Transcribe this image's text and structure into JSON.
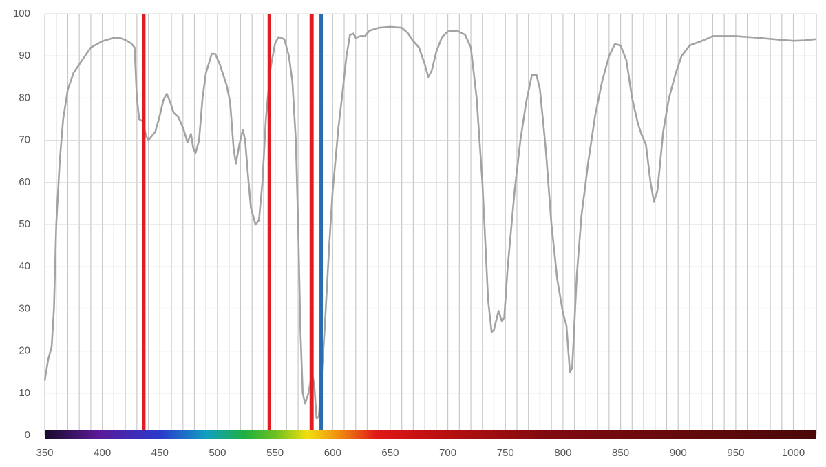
{
  "chart_data": {
    "type": "line",
    "x": [
      350,
      353,
      356,
      358,
      360,
      363,
      366,
      370,
      375,
      380,
      385,
      390,
      400,
      410,
      415,
      420,
      425,
      428,
      430,
      432,
      435,
      438,
      440,
      443,
      446,
      450,
      453,
      456,
      459,
      462,
      466,
      470,
      474,
      477,
      479,
      481,
      484,
      487,
      490,
      495,
      498,
      502,
      508,
      511,
      514,
      516,
      519,
      522,
      524,
      527,
      529,
      533,
      536,
      539,
      542,
      546,
      550,
      553,
      558,
      562,
      565,
      568,
      570,
      572,
      574,
      576,
      579,
      582,
      584,
      586,
      588,
      590,
      593,
      597,
      600,
      605,
      608,
      612,
      615,
      618,
      620,
      624,
      628,
      632,
      640,
      650,
      660,
      665,
      670,
      675,
      680,
      683,
      686,
      690,
      695,
      700,
      708,
      715,
      720,
      725,
      730,
      735,
      738,
      740,
      744,
      747,
      749,
      752,
      758,
      763,
      768,
      773,
      777,
      780,
      785,
      790,
      795,
      800,
      803,
      806,
      808,
      812,
      816,
      822,
      828,
      834,
      840,
      845,
      850,
      855,
      860,
      865,
      868,
      872,
      876,
      879,
      882,
      887,
      892,
      898,
      903,
      910,
      920,
      930,
      950,
      970,
      990,
      1000,
      1010,
      1020
    ],
    "values": [
      13,
      18,
      21,
      30,
      50,
      65,
      75,
      82,
      86,
      88,
      90,
      92,
      93.5,
      94.3,
      94.3,
      93.8,
      93,
      92,
      80,
      75,
      74.5,
      71,
      70,
      71,
      72,
      76,
      79.5,
      81,
      79,
      76.5,
      75.5,
      73,
      69.5,
      71.5,
      68,
      67,
      70,
      80,
      86,
      90.5,
      90.5,
      88,
      83,
      79,
      68,
      64.5,
      69,
      72.5,
      70,
      60,
      54,
      50,
      51,
      60,
      75,
      87,
      93,
      94.5,
      94,
      90,
      84,
      70,
      50,
      25,
      10,
      7.5,
      10,
      15,
      12,
      4,
      4.5,
      12,
      25,
      45,
      58,
      73,
      80,
      90,
      95,
      95.3,
      94.3,
      94.7,
      94.7,
      96,
      96.7,
      96.9,
      96.7,
      95.5,
      93.5,
      92,
      88,
      85,
      86.5,
      91,
      94.5,
      95.8,
      96,
      95,
      92,
      80,
      60,
      32,
      24.5,
      25,
      29.5,
      27,
      28,
      40,
      58,
      70,
      79,
      85.5,
      85.5,
      82,
      68,
      50,
      37,
      29,
      26,
      15,
      16,
      38,
      52,
      65,
      76,
      84,
      90,
      92.8,
      92.5,
      89,
      80,
      74,
      71.5,
      69,
      60,
      55.5,
      58,
      72,
      80,
      86,
      90,
      92.5,
      93.5,
      94.7,
      94.7,
      94.3,
      93.8,
      93.6,
      93.7,
      94
    ],
    "color": "#a3a3a3",
    "xlim": [
      350,
      1020
    ],
    "xticks": [
      350,
      400,
      450,
      500,
      550,
      600,
      650,
      700,
      750,
      800,
      850,
      900,
      950,
      1000
    ],
    "xgrid": [
      350,
      360,
      370,
      380,
      390,
      400,
      410,
      420,
      430,
      440,
      450,
      460,
      470,
      480,
      490,
      500,
      510,
      520,
      530,
      540,
      550,
      560,
      570,
      580,
      590,
      600,
      610,
      620,
      630,
      640,
      650,
      660,
      670,
      680,
      690,
      700,
      710,
      720,
      730,
      740,
      750,
      760,
      770,
      780,
      790,
      800,
      810,
      820,
      830,
      840,
      850,
      860,
      870,
      880,
      890,
      900,
      910,
      920,
      930,
      940,
      950,
      960,
      970,
      980,
      990,
      1000,
      1010,
      1020
    ],
    "ylim": [
      0,
      100
    ],
    "yticks": [
      0,
      10,
      20,
      30,
      40,
      50,
      60,
      70,
      80,
      90,
      100
    ],
    "grid": true,
    "vlines": [
      {
        "x": 436,
        "color": "#e31b23"
      },
      {
        "x": 545,
        "color": "#e31b23"
      },
      {
        "x": 582,
        "color": "#e31b23"
      },
      {
        "x": 590,
        "color": "#2b6cb0"
      }
    ]
  }
}
